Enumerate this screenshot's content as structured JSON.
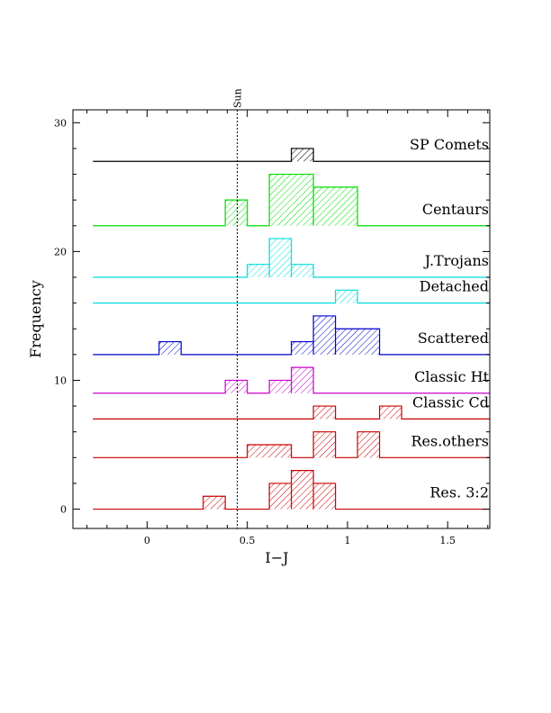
{
  "chart_data": {
    "type": "bar",
    "xlabel": "I−J",
    "ylabel": "Frequency",
    "xlim": [
      -0.37,
      1.71
    ],
    "ylim": [
      -1.5,
      31
    ],
    "x_ticks": [
      "0",
      "0.5",
      "1",
      "1.5"
    ],
    "y_ticks": [
      "0",
      "10",
      "20",
      "30"
    ],
    "grid": false,
    "reference_line": {
      "label": "Sun",
      "x": 0.45
    },
    "series": [
      {
        "name": "SP Comets",
        "color": "#000000",
        "baseline": 27,
        "xmin": -0.27,
        "xmax": 1.71,
        "bins": [
          {
            "x0": 0.72,
            "x1": 0.83,
            "count": 1
          }
        ]
      },
      {
        "name": "Centaurs",
        "color": "#00dd00",
        "baseline": 22,
        "xmin": -0.27,
        "xmax": 1.71,
        "bins": [
          {
            "x0": 0.39,
            "x1": 0.5,
            "count": 2
          },
          {
            "x0": 0.61,
            "x1": 0.83,
            "count": 4
          },
          {
            "x0": 0.83,
            "x1": 1.05,
            "count": 3
          }
        ]
      },
      {
        "name": "J.Trojans",
        "color": "#00dddd",
        "baseline": 18,
        "xmin": -0.27,
        "xmax": 1.71,
        "bins": [
          {
            "x0": 0.5,
            "x1": 0.61,
            "count": 1
          },
          {
            "x0": 0.61,
            "x1": 0.72,
            "count": 3
          },
          {
            "x0": 0.72,
            "x1": 0.83,
            "count": 1
          }
        ]
      },
      {
        "name": "Detached",
        "color": "#00dddd",
        "baseline": 16,
        "xmin": -0.27,
        "xmax": 1.71,
        "bins": [
          {
            "x0": 0.94,
            "x1": 1.05,
            "count": 1
          }
        ]
      },
      {
        "name": "Scattered",
        "color": "#0000cc",
        "baseline": 12,
        "xmin": -0.27,
        "xmax": 1.71,
        "bins": [
          {
            "x0": 0.06,
            "x1": 0.17,
            "count": 1
          },
          {
            "x0": 0.72,
            "x1": 0.83,
            "count": 1
          },
          {
            "x0": 0.83,
            "x1": 0.94,
            "count": 3
          },
          {
            "x0": 0.94,
            "x1": 1.16,
            "count": 2
          }
        ]
      },
      {
        "name": "Classic Ht",
        "color": "#cc00cc",
        "baseline": 9,
        "xmin": -0.27,
        "xmax": 1.71,
        "bins": [
          {
            "x0": 0.39,
            "x1": 0.5,
            "count": 1
          },
          {
            "x0": 0.61,
            "x1": 0.72,
            "count": 1
          },
          {
            "x0": 0.72,
            "x1": 0.83,
            "count": 2
          }
        ]
      },
      {
        "name": "Classic Cd",
        "color": "#cc0000",
        "baseline": 7,
        "xmin": -0.27,
        "xmax": 1.71,
        "bins": [
          {
            "x0": 0.83,
            "x1": 0.94,
            "count": 1
          },
          {
            "x0": 1.16,
            "x1": 1.27,
            "count": 1
          }
        ]
      },
      {
        "name": "Res.others",
        "color": "#cc0000",
        "baseline": 4,
        "xmin": -0.27,
        "xmax": 1.71,
        "bins": [
          {
            "x0": 0.5,
            "x1": 0.72,
            "count": 1
          },
          {
            "x0": 0.83,
            "x1": 0.94,
            "count": 2
          },
          {
            "x0": 1.05,
            "x1": 1.16,
            "count": 2
          }
        ]
      },
      {
        "name": "Res. 3:2",
        "color": "#cc0000",
        "baseline": 0,
        "xmin": -0.27,
        "xmax": 1.71,
        "bins": [
          {
            "x0": 0.28,
            "x1": 0.39,
            "count": 1
          },
          {
            "x0": 0.61,
            "x1": 0.72,
            "count": 2
          },
          {
            "x0": 0.72,
            "x1": 0.83,
            "count": 3
          },
          {
            "x0": 0.83,
            "x1": 0.94,
            "count": 2
          }
        ]
      }
    ]
  }
}
